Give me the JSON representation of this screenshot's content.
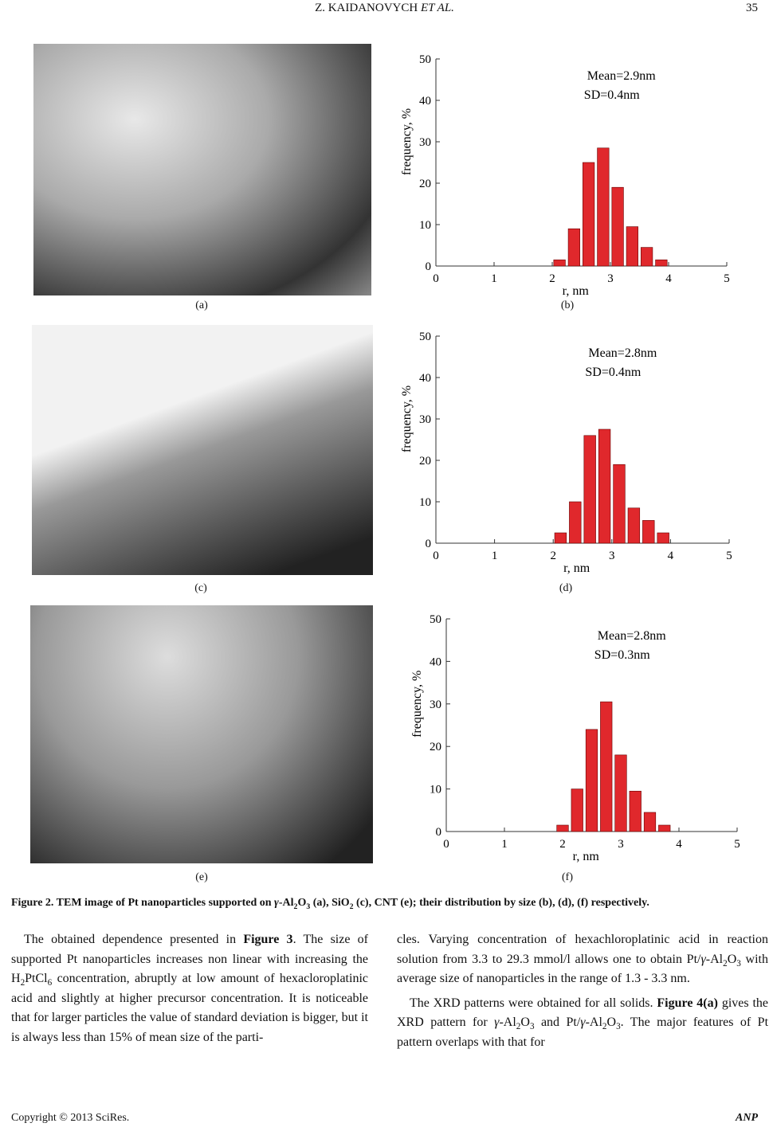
{
  "header": {
    "title": [
      "Z. KAIDANOVYCH ",
      {
        "i": "ET AL."
      }
    ],
    "page": "35"
  },
  "panel_labels": [
    "(a)",
    "(b)",
    "(c)",
    "(d)",
    "(e)",
    "(f)"
  ],
  "chart_data": [
    {
      "type": "histogram",
      "xlabel": "r, nm",
      "ylabel": "frequency, %",
      "annotations": [
        "Mean=2.9nm",
        "SD=0.4nm"
      ],
      "bins": [
        2.0,
        2.25,
        2.5,
        2.75,
        3.0,
        3.25,
        3.5,
        3.75,
        4.0
      ],
      "values": [
        1.5,
        9,
        25,
        28.5,
        19,
        9.5,
        4.5,
        1.5
      ],
      "color": "#e0282c",
      "xlim": [
        0,
        5
      ],
      "ylim": [
        0,
        50
      ],
      "xticks": [
        0,
        1,
        2,
        3,
        4,
        5
      ],
      "yticks": [
        0,
        10,
        20,
        30,
        40,
        50
      ]
    },
    {
      "type": "histogram",
      "xlabel": "r, nm",
      "ylabel": "frequency, %",
      "annotations": [
        "Mean=2.8nm",
        "SD=0.4nm"
      ],
      "bins": [
        2.0,
        2.25,
        2.5,
        2.75,
        3.0,
        3.25,
        3.5,
        3.75,
        4.0
      ],
      "values": [
        2.5,
        10,
        26,
        27.5,
        19,
        8.5,
        5.5,
        2.5
      ],
      "color": "#e0282c",
      "xlim": [
        0,
        5
      ],
      "ylim": [
        0,
        50
      ],
      "xticks": [
        0,
        1,
        2,
        3,
        4,
        5
      ],
      "yticks": [
        0,
        10,
        20,
        30,
        40,
        50
      ]
    },
    {
      "type": "histogram",
      "xlabel": "r, nm",
      "ylabel": "frequency, %",
      "annotations": [
        "Mean=2.8nm",
        "SD=0.3nm"
      ],
      "bins": [
        1.875,
        2.125,
        2.375,
        2.625,
        2.875,
        3.125,
        3.375,
        3.625,
        3.875
      ],
      "values": [
        1.5,
        10,
        24,
        30.5,
        18,
        9.5,
        4.5,
        1.5
      ],
      "color": "#e0282c",
      "xlim": [
        0,
        5
      ],
      "ylim": [
        0,
        50
      ],
      "xticks": [
        0,
        1,
        2,
        3,
        4,
        5
      ],
      "yticks": [
        0,
        10,
        20,
        30,
        40,
        50
      ]
    }
  ],
  "figure_caption": [
    "Figure 2. TEM image of Pt nanoparticles supported on ",
    {
      "i": "γ"
    },
    "-Al",
    {
      "sub": "2"
    },
    "O",
    {
      "sub": "3"
    },
    " (a), SiO",
    {
      "sub": "2"
    },
    " (c), CNT (e); their distribution by size (b), (d), (f) respectively."
  ],
  "left_column": [
    [
      "The obtained dependence presented in ",
      {
        "b": "Figure 3"
      },
      ". The size of supported Pt nanoparticles increases non linear with increasing the H",
      {
        "sub": "2"
      },
      "PtCl",
      {
        "sub": "6"
      },
      " concentration, abruptly at low amount of hexacloroplatinic acid and slightly at higher precursor concentration. It is noticeable that for larger particles the value of standard deviation is bigger, but it is always less than 15% of mean size of the parti-"
    ]
  ],
  "right_column": [
    [
      "cles. Varying concentration of hexachloroplatinic acid in reaction solution from 3.3 to 29.3 mmol/l allows one to obtain Pt/",
      {
        "i": "γ"
      },
      "-Al",
      {
        "sub": "2"
      },
      "O",
      {
        "sub": "3"
      },
      " with average size of nanoparticles in the range of 1.3 - 3.3 nm."
    ],
    [
      "The XRD patterns were obtained for all solids. ",
      {
        "b": "Figure 4(a)"
      },
      " gives the XRD pattern for ",
      {
        "i": "γ"
      },
      "-Al",
      {
        "sub": "2"
      },
      "O",
      {
        "sub": "3"
      },
      " and Pt/",
      {
        "i": "γ"
      },
      "-Al",
      {
        "sub": "2"
      },
      "O",
      {
        "sub": "3"
      },
      ". The major features of Pt pattern overlaps with that for"
    ]
  ],
  "footer": {
    "copyright": "Copyright © 2013 SciRes.",
    "journal": "ANP"
  }
}
